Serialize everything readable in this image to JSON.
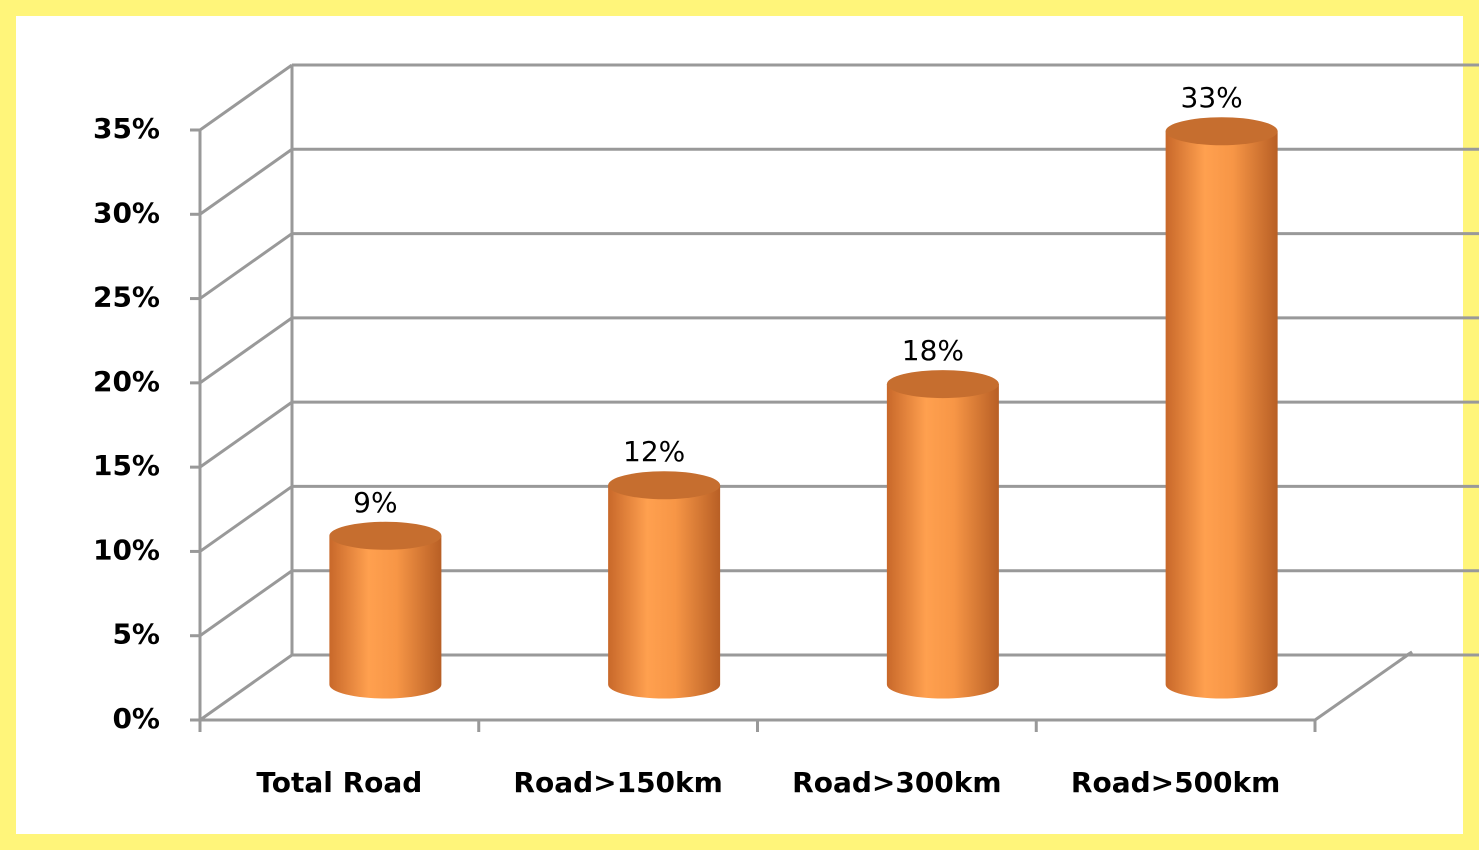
{
  "chart_data": {
    "type": "bar3d",
    "categories": [
      "Total Road",
      "Road>150km",
      "Road>300km",
      "Road>500km"
    ],
    "values": [
      9,
      12,
      18,
      33
    ],
    "value_labels": [
      "9%",
      "12%",
      "18%",
      "33%"
    ],
    "color": "#f79646",
    "ylim": [
      0,
      35
    ],
    "yticks": [
      {
        "value": 0,
        "label": "0%"
      },
      {
        "value": 5,
        "label": "5%"
      },
      {
        "value": 10,
        "label": "10%"
      },
      {
        "value": 15,
        "label": "15%"
      },
      {
        "value": 20,
        "label": "20%"
      },
      {
        "value": 25,
        "label": "25%"
      },
      {
        "value": 30,
        "label": "30%"
      },
      {
        "value": 35,
        "label": "35%"
      }
    ],
    "grid": true
  }
}
